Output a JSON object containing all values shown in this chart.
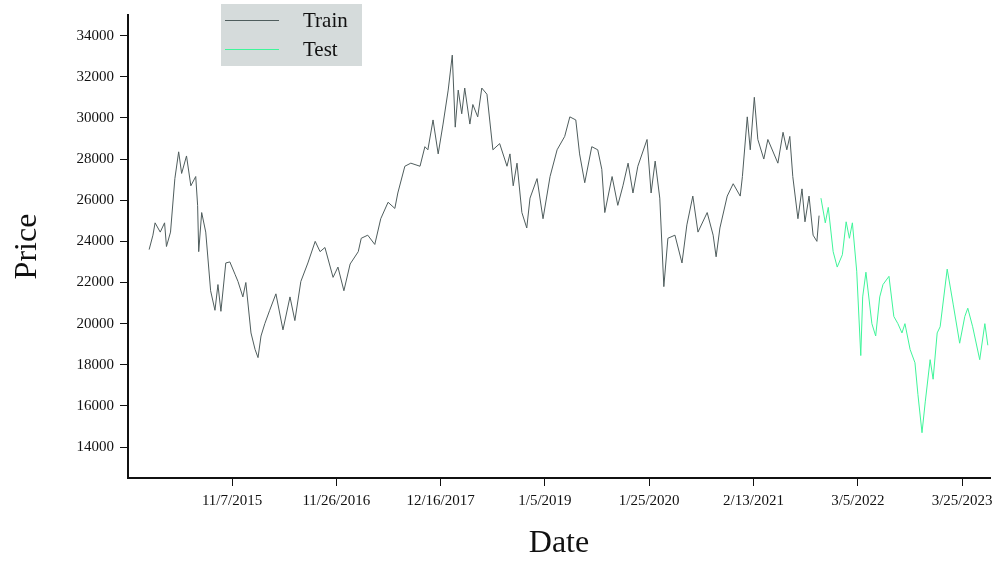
{
  "chart_data": {
    "type": "line",
    "xlabel": "Date",
    "ylabel": "Price",
    "xlim": [
      "2014-10-19",
      "2023-07-06"
    ],
    "ylim": [
      12500,
      35000
    ],
    "xticks": [
      {
        "value": "2015-11-07",
        "label": "11/7/2015"
      },
      {
        "value": "2016-11-26",
        "label": "11/26/2016"
      },
      {
        "value": "2017-12-16",
        "label": "12/16/2017"
      },
      {
        "value": "2019-01-05",
        "label": "1/5/2019"
      },
      {
        "value": "2020-01-25",
        "label": "1/25/2020"
      },
      {
        "value": "2021-02-13",
        "label": "2/13/2021"
      },
      {
        "value": "2022-03-05",
        "label": "3/5/2022"
      },
      {
        "value": "2023-03-25",
        "label": "3/25/2023"
      }
    ],
    "yticks": [
      14000,
      16000,
      18000,
      20000,
      22000,
      24000,
      26000,
      28000,
      30000,
      32000,
      34000
    ],
    "grid": false,
    "legend": "top left",
    "series": [
      {
        "name": "Train",
        "color": "#4f5d5d",
        "x": [
          "2015-01-05",
          "2015-01-19",
          "2015-01-27",
          "2015-02-15",
          "2015-03-03",
          "2015-03-10",
          "2015-03-25",
          "2015-04-10",
          "2015-04-24",
          "2015-05-05",
          "2015-05-23",
          "2015-06-08",
          "2015-06-26",
          "2015-07-03",
          "2015-07-07",
          "2015-07-18",
          "2015-08-02",
          "2015-08-20",
          "2015-09-05",
          "2015-09-16",
          "2015-09-27",
          "2015-10-15",
          "2015-10-30",
          "2015-11-18",
          "2015-11-29",
          "2015-12-17",
          "2015-12-28",
          "2016-01-16",
          "2016-01-31",
          "2016-02-11",
          "2016-02-22",
          "2016-03-07",
          "2016-03-25",
          "2016-04-17",
          "2016-05-13",
          "2016-06-08",
          "2016-06-26",
          "2016-07-18",
          "2016-08-13",
          "2016-09-09",
          "2016-09-27",
          "2016-10-15",
          "2016-11-14",
          "2016-12-02",
          "2016-12-24",
          "2017-01-16",
          "2017-02-15",
          "2017-02-26",
          "2017-03-22",
          "2017-04-17",
          "2017-05-09",
          "2017-06-05",
          "2017-06-30",
          "2017-07-11",
          "2017-08-06",
          "2017-08-28",
          "2017-10-01",
          "2017-10-19",
          "2017-10-30",
          "2017-11-18",
          "2017-12-07",
          "2017-12-25",
          "2018-01-13",
          "2018-01-28",
          "2018-02-08",
          "2018-02-19",
          "2018-03-04",
          "2018-03-15",
          "2018-04-03",
          "2018-04-14",
          "2018-05-02",
          "2018-05-17",
          "2018-06-05",
          "2018-06-27",
          "2018-07-22",
          "2018-08-18",
          "2018-08-29",
          "2018-09-10",
          "2018-09-24",
          "2018-10-12",
          "2018-10-30",
          "2018-11-11",
          "2018-12-07",
          "2018-12-29",
          "2019-01-24",
          "2019-02-19",
          "2019-03-19",
          "2019-04-07",
          "2019-04-29",
          "2019-05-13",
          "2019-06-01",
          "2019-06-27",
          "2019-07-19",
          "2019-08-03",
          "2019-08-14",
          "2019-09-10",
          "2019-10-01",
          "2019-10-20",
          "2019-11-08",
          "2019-11-26",
          "2019-12-14",
          "2020-01-17",
          "2020-02-01",
          "2020-02-16",
          "2020-03-04",
          "2020-03-19",
          "2020-04-03",
          "2020-04-29",
          "2020-05-25",
          "2020-06-12",
          "2020-07-04",
          "2020-07-23",
          "2020-08-26",
          "2020-09-17",
          "2020-09-28",
          "2020-10-12",
          "2020-11-08",
          "2020-11-30",
          "2020-12-26",
          "2021-01-03",
          "2021-01-21",
          "2021-02-01",
          "2021-02-16",
          "2021-03-01",
          "2021-03-23",
          "2021-04-07",
          "2021-05-14",
          "2021-06-02",
          "2021-06-16",
          "2021-06-27",
          "2021-07-08",
          "2021-07-27",
          "2021-08-11",
          "2021-08-22",
          "2021-09-06",
          "2021-09-21",
          "2021-10-05",
          "2021-10-13"
        ],
        "values": [
          23600,
          24300,
          24900,
          24450,
          24900,
          23750,
          24450,
          27050,
          28350,
          27300,
          28150,
          26700,
          27150,
          25750,
          23500,
          25400,
          24450,
          21600,
          20650,
          21900,
          20600,
          22950,
          23000,
          22400,
          22050,
          21300,
          22000,
          19550,
          18750,
          18350,
          19400,
          20000,
          20650,
          21450,
          19700,
          21300,
          20150,
          22050,
          22950,
          24000,
          23500,
          23700,
          22250,
          22750,
          21600,
          22900,
          23500,
          24150,
          24300,
          23850,
          25100,
          25900,
          25600,
          26350,
          27650,
          27800,
          27650,
          28600,
          28450,
          29900,
          28250,
          29700,
          31350,
          33050,
          29550,
          31350,
          30200,
          31450,
          29700,
          30650,
          30050,
          31450,
          31150,
          28450,
          28750,
          27650,
          28250,
          26700,
          27800,
          25400,
          24650,
          26100,
          27050,
          25100,
          27150,
          28450,
          29100,
          30050,
          29900,
          28250,
          26850,
          28600,
          28450,
          27500,
          25400,
          27150,
          25750,
          26700,
          27800,
          26350,
          27650,
          28950,
          26350,
          27900,
          26100,
          21800,
          24150,
          24300,
          22950,
          24800,
          26200,
          24450,
          25400,
          24300,
          23250,
          24650,
          26200,
          26800,
          26200,
          27150,
          30050,
          28450,
          31000,
          28950,
          28000,
          28950,
          27800,
          29300,
          28450,
          29100,
          27150,
          25100,
          26550,
          24950,
          26200,
          24300,
          24000,
          25250
        ]
      },
      {
        "name": "Test",
        "color": "#3ff59a",
        "x": [
          "2021-10-20",
          "2021-11-05",
          "2021-11-16",
          "2021-12-04",
          "2021-12-19",
          "2022-01-07",
          "2022-01-21",
          "2022-02-02",
          "2022-02-13",
          "2022-03-01",
          "2022-03-16",
          "2022-03-23",
          "2022-04-04",
          "2022-04-26",
          "2022-05-10",
          "2022-05-25",
          "2022-06-06",
          "2022-06-28",
          "2022-07-16",
          "2022-07-31",
          "2022-08-15",
          "2022-08-26",
          "2022-09-14",
          "2022-10-02",
          "2022-10-13",
          "2022-10-28",
          "2022-11-09",
          "2022-11-27",
          "2022-12-08",
          "2022-12-23",
          "2023-01-03",
          "2023-01-29",
          "2023-02-20",
          "2023-03-16",
          "2023-04-04",
          "2023-04-15",
          "2023-05-03",
          "2023-05-29",
          "2023-06-17",
          "2023-06-28"
        ],
        "values": [
          26100,
          24900,
          25650,
          23500,
          22750,
          23350,
          24950,
          24150,
          24900,
          22550,
          18450,
          21300,
          22500,
          20000,
          19400,
          21300,
          21900,
          22300,
          20350,
          20000,
          19550,
          20000,
          18750,
          18100,
          16550,
          14700,
          16200,
          18250,
          17300,
          19550,
          19850,
          22650,
          20950,
          19050,
          20350,
          20750,
          19850,
          18250,
          20000,
          18950
        ]
      }
    ]
  }
}
